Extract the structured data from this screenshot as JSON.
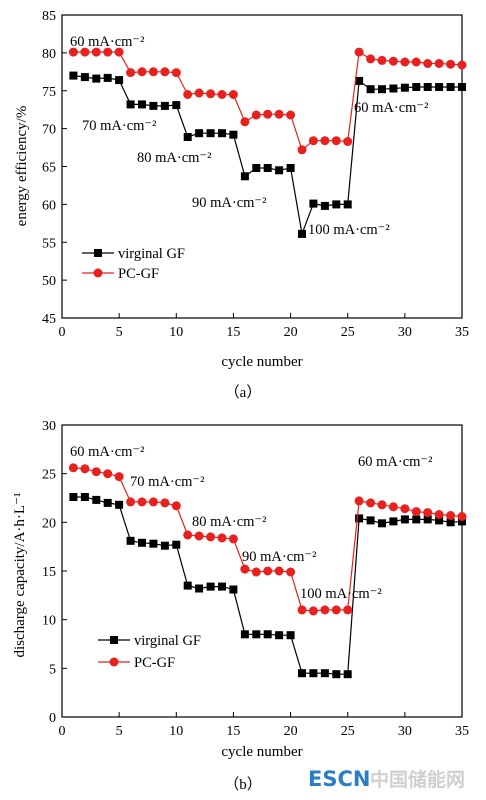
{
  "chart_data": [
    {
      "type": "line",
      "x": [
        1,
        2,
        3,
        4,
        5,
        6,
        7,
        8,
        9,
        10,
        11,
        12,
        13,
        14,
        15,
        16,
        17,
        18,
        19,
        20,
        21,
        22,
        23,
        24,
        25,
        26,
        27,
        28,
        29,
        30,
        31,
        32,
        33,
        34,
        35
      ],
      "xlabel": "cycle number",
      "ylabel": "energy efficiency/%",
      "xlim": [
        0,
        35
      ],
      "ylim": [
        45,
        85
      ],
      "xticks": [
        0,
        5,
        10,
        15,
        20,
        25,
        30,
        35
      ],
      "yticks": [
        45,
        50,
        55,
        60,
        65,
        70,
        75,
        80,
        85
      ],
      "series": [
        {
          "name": "virginal GF",
          "color": "#000000",
          "marker": "square",
          "values": [
            77.0,
            76.8,
            76.6,
            76.7,
            76.4,
            73.2,
            73.2,
            73.0,
            73.0,
            73.1,
            68.9,
            69.4,
            69.4,
            69.4,
            69.2,
            63.7,
            64.8,
            64.8,
            64.5,
            64.8,
            56.1,
            60.1,
            59.8,
            60.0,
            60.0,
            76.3,
            75.2,
            75.2,
            75.3,
            75.4,
            75.5,
            75.5,
            75.5,
            75.5,
            75.5
          ]
        },
        {
          "name": "PC-GF",
          "color": "#e8201e",
          "marker": "circle",
          "values": [
            80.1,
            80.1,
            80.1,
            80.1,
            80.1,
            77.4,
            77.5,
            77.5,
            77.5,
            77.4,
            74.5,
            74.7,
            74.6,
            74.5,
            74.5,
            70.9,
            71.8,
            71.9,
            71.9,
            71.8,
            67.2,
            68.4,
            68.4,
            68.4,
            68.3,
            80.1,
            79.2,
            79.0,
            78.9,
            78.8,
            78.8,
            78.6,
            78.6,
            78.5,
            78.4
          ]
        }
      ],
      "annotations": [
        "60 mA·cm⁻²",
        "70 mA·cm⁻²",
        "80 mA·cm⁻²",
        "90 mA·cm⁻²",
        "100 mA·cm⁻²",
        "60 mA·cm⁻²"
      ],
      "caption": "（a）"
    },
    {
      "type": "line",
      "x": [
        1,
        2,
        3,
        4,
        5,
        6,
        7,
        8,
        9,
        10,
        11,
        12,
        13,
        14,
        15,
        16,
        17,
        18,
        19,
        20,
        21,
        22,
        23,
        24,
        25,
        26,
        27,
        28,
        29,
        30,
        31,
        32,
        33,
        34,
        35
      ],
      "xlabel": "cycle number",
      "ylabel": "discharge capacity/A·h·L⁻¹",
      "xlim": [
        0,
        35
      ],
      "ylim": [
        0,
        30
      ],
      "xticks": [
        0,
        5,
        10,
        15,
        20,
        25,
        30,
        35
      ],
      "yticks": [
        0,
        5,
        10,
        15,
        20,
        25,
        30
      ],
      "series": [
        {
          "name": "virginal GF",
          "color": "#000000",
          "marker": "square",
          "values": [
            22.6,
            22.6,
            22.3,
            22.0,
            21.8,
            18.1,
            17.9,
            17.8,
            17.6,
            17.7,
            13.5,
            13.2,
            13.4,
            13.4,
            13.1,
            8.5,
            8.5,
            8.5,
            8.4,
            8.4,
            4.5,
            4.5,
            4.5,
            4.4,
            4.4,
            20.4,
            20.2,
            19.9,
            20.1,
            20.3,
            20.3,
            20.3,
            20.2,
            20.0,
            20.1
          ]
        },
        {
          "name": "PC-GF",
          "color": "#e8201e",
          "marker": "circle",
          "values": [
            25.6,
            25.5,
            25.2,
            25.0,
            24.7,
            22.1,
            22.1,
            22.1,
            22.0,
            21.7,
            18.7,
            18.6,
            18.5,
            18.4,
            18.3,
            15.2,
            14.9,
            15.0,
            15.0,
            14.9,
            11.0,
            10.9,
            11.0,
            11.0,
            11.0,
            22.2,
            22.0,
            21.8,
            21.6,
            21.4,
            21.1,
            21.0,
            20.8,
            20.7,
            20.6
          ]
        }
      ],
      "annotations": [
        "60 mA·cm⁻²",
        "70 mA·cm⁻²",
        "80 mA·cm⁻²",
        "90 mA·cm⁻²",
        "100 mA·cm⁻²",
        "60 mA·cm⁻²"
      ],
      "caption": "（b）"
    }
  ],
  "watermark": {
    "latin": "ESCN",
    "cjk": "中国储能网",
    "color_latin": "#2a7fc4",
    "color_cjk": "#d0d0d0"
  }
}
